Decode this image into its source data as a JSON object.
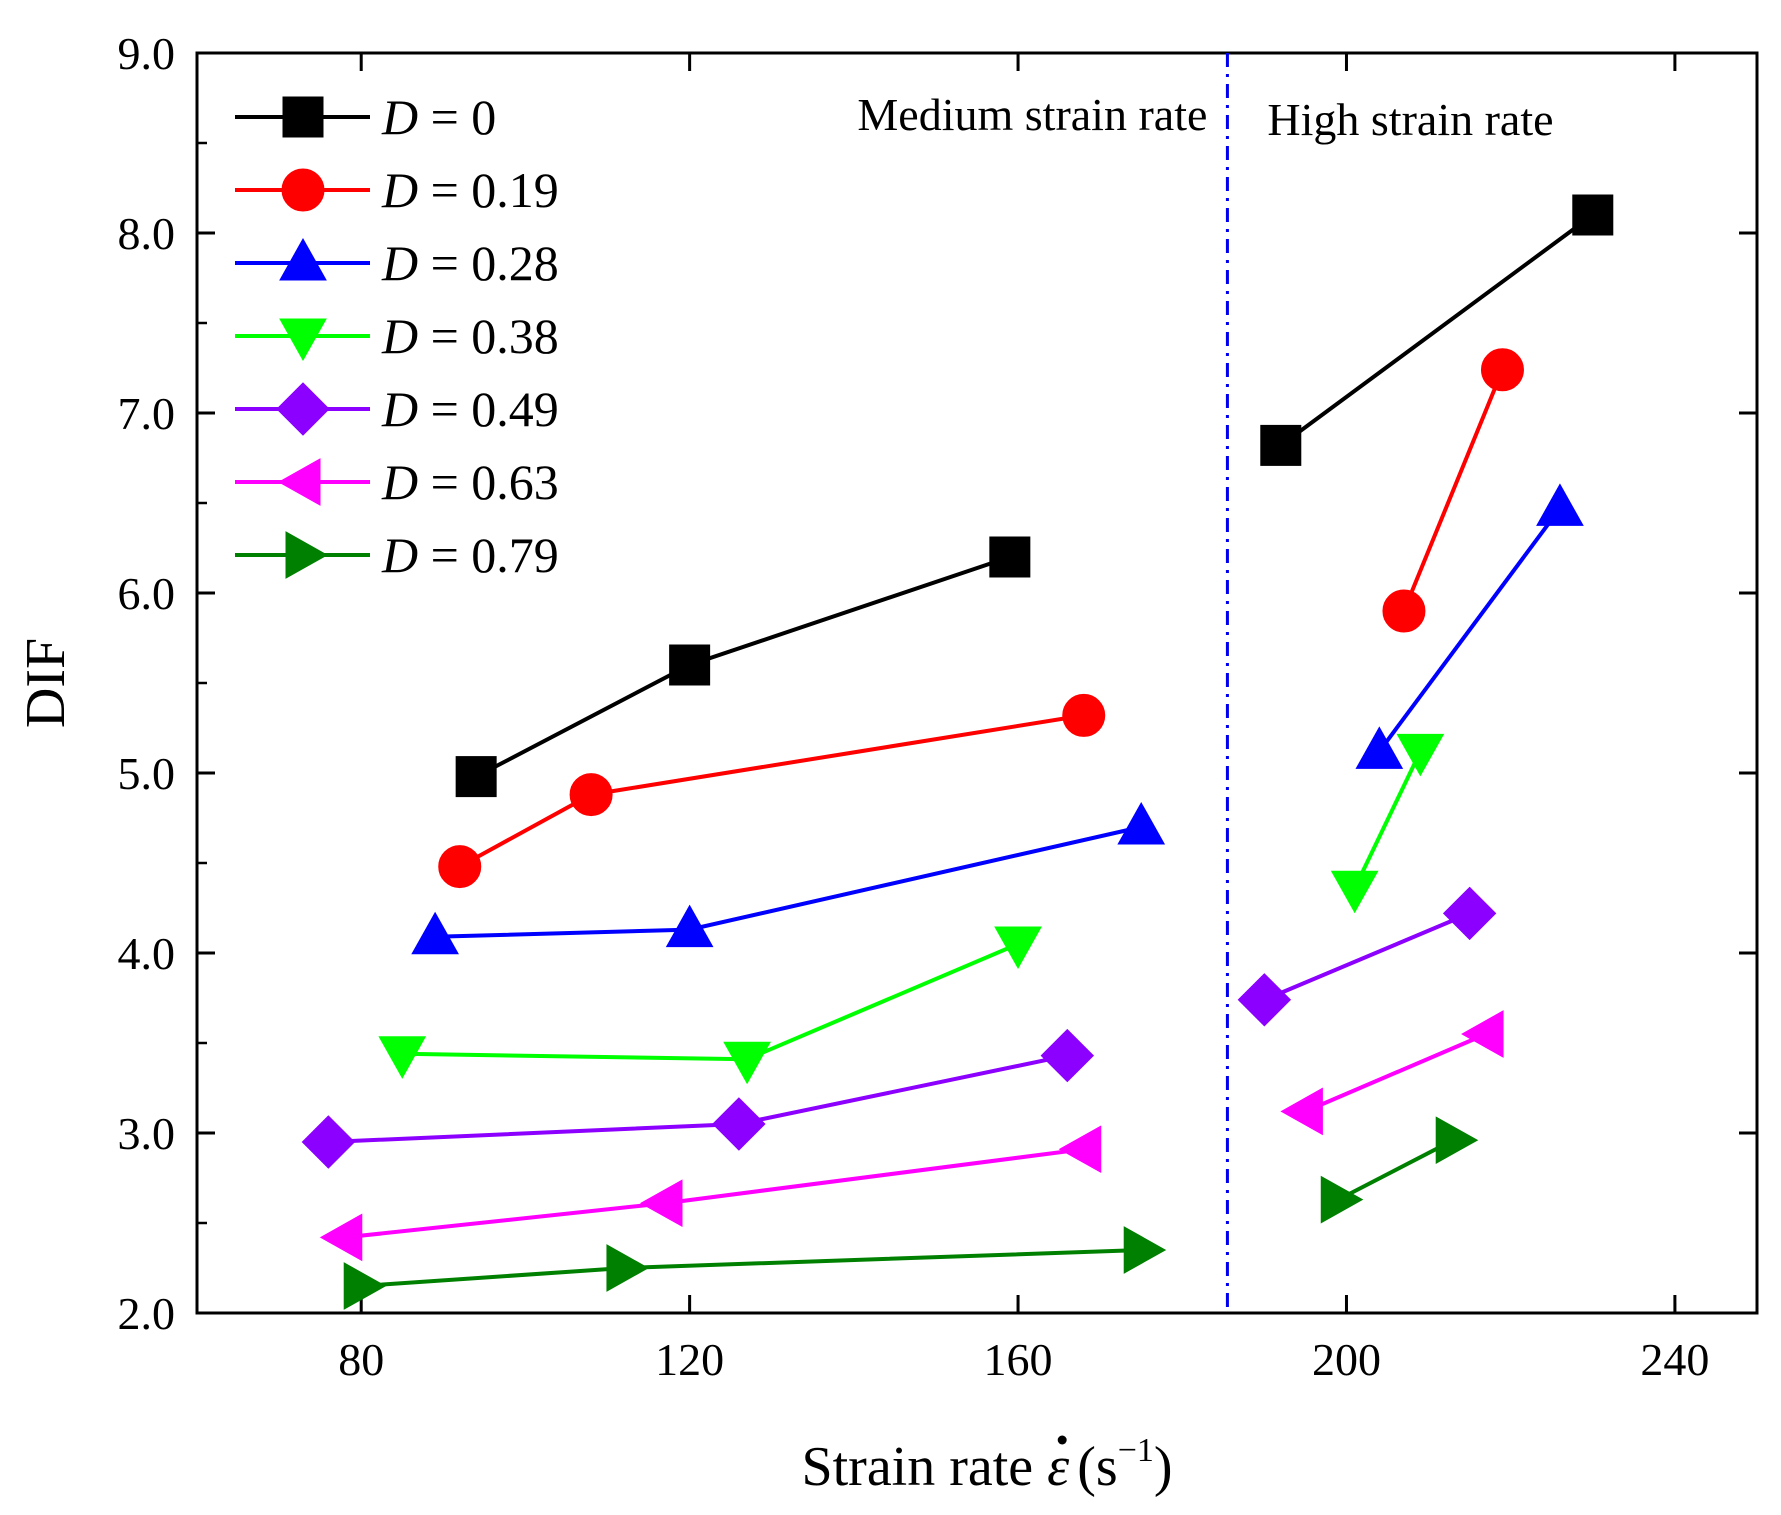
{
  "chart_data": {
    "type": "line",
    "xlabel": "Strain rate ε̇ (s⁻¹)",
    "xlabel_parts": {
      "main": "Strain rate ",
      "symbol": "ε",
      "unit_open": "(s",
      "unit_sup": "−1",
      "unit_close": ")"
    },
    "ylabel": "DIF",
    "xlim": [
      60,
      250
    ],
    "ylim": [
      2.0,
      9.0
    ],
    "x_ticks": [
      80,
      120,
      160,
      200,
      240
    ],
    "x_tick_labels": [
      "80",
      "120",
      "160",
      "200",
      "240"
    ],
    "y_ticks": [
      2.0,
      3.0,
      4.0,
      5.0,
      6.0,
      7.0,
      8.0,
      9.0
    ],
    "y_tick_labels": [
      "2.0",
      "3.0",
      "4.0",
      "5.0",
      "6.0",
      "7.0",
      "8.0",
      "9.0"
    ],
    "divider": {
      "x": 185.5,
      "color": "#0000ee",
      "style": "dash-dot"
    },
    "regions": [
      {
        "label": "Medium strain rate",
        "side": "left"
      },
      {
        "label": "High strain rate",
        "side": "right"
      }
    ],
    "legend": {
      "position": "top-left"
    },
    "series": [
      {
        "name": "D = 0",
        "label_prefix": "D",
        "label_value": "= 0",
        "color": "#000000",
        "marker": "square",
        "segments": [
          [
            [
              94,
              4.98
            ],
            [
              120,
              5.6
            ],
            [
              159,
              6.2
            ]
          ],
          [
            [
              192,
              6.82
            ],
            [
              230,
              8.1
            ]
          ]
        ]
      },
      {
        "name": "D = 0.19",
        "label_prefix": "D",
        "label_value": "= 0.19",
        "color": "#ff0000",
        "marker": "circle",
        "segments": [
          [
            [
              92,
              4.48
            ],
            [
              108,
              4.88
            ],
            [
              168,
              5.32
            ]
          ],
          [
            [
              207,
              5.9
            ],
            [
              219,
              7.24
            ]
          ]
        ]
      },
      {
        "name": "D = 0.28",
        "label_prefix": "D",
        "label_value": "= 0.28",
        "color": "#0000ff",
        "marker": "triangle-up",
        "segments": [
          [
            [
              89,
              4.09
            ],
            [
              120,
              4.13
            ],
            [
              175,
              4.7
            ]
          ],
          [
            [
              204,
              5.12
            ],
            [
              226,
              6.47
            ]
          ]
        ]
      },
      {
        "name": "D = 0.38",
        "label_prefix": "D",
        "label_value": "= 0.38",
        "color": "#00ff00",
        "marker": "triangle-down",
        "segments": [
          [
            [
              85,
              3.44
            ],
            [
              127,
              3.41
            ],
            [
              160,
              4.05
            ]
          ],
          [
            [
              201,
              4.36
            ],
            [
              209,
              5.12
            ]
          ]
        ]
      },
      {
        "name": "D = 0.49",
        "label_prefix": "D",
        "label_value": "= 0.49",
        "color": "#8b00ff",
        "marker": "diamond",
        "segments": [
          [
            [
              76,
              2.95
            ],
            [
              126,
              3.05
            ],
            [
              166,
              3.43
            ]
          ],
          [
            [
              190,
              3.74
            ],
            [
              215,
              4.22
            ]
          ]
        ]
      },
      {
        "name": "D = 0.63",
        "label_prefix": "D",
        "label_value": "= 0.63",
        "color": "#ff00ff",
        "marker": "triangle-left",
        "segments": [
          [
            [
              78,
              2.42
            ],
            [
              117,
              2.61
            ],
            [
              168,
              2.91
            ]
          ],
          [
            [
              195,
              3.12
            ],
            [
              217,
              3.55
            ]
          ]
        ]
      },
      {
        "name": "D = 0.79",
        "label_prefix": "D",
        "label_value": "= 0.79",
        "color": "#008000",
        "marker": "triangle-right",
        "segments": [
          [
            [
              80,
              2.15
            ],
            [
              112,
              2.25
            ],
            [
              175,
              2.35
            ]
          ],
          [
            [
              199,
              2.63
            ],
            [
              213,
              2.96
            ]
          ]
        ]
      }
    ]
  }
}
